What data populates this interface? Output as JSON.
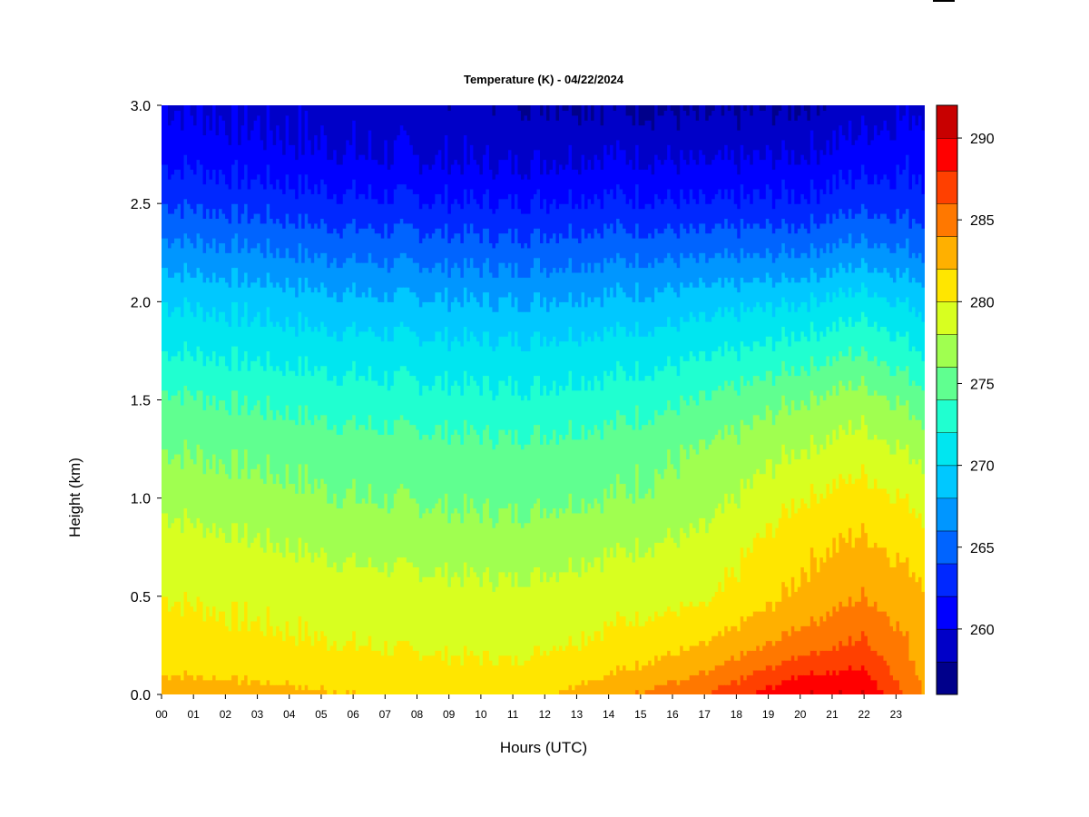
{
  "chart_data": {
    "type": "heatmap",
    "title": "Temperature (K) - 04/22/2024",
    "xlabel": "Hours (UTC)",
    "ylabel": "Height (km)",
    "x_ticks": [
      "00",
      "01",
      "02",
      "03",
      "04",
      "05",
      "06",
      "07",
      "08",
      "09",
      "10",
      "11",
      "12",
      "13",
      "14",
      "15",
      "16",
      "17",
      "18",
      "19",
      "20",
      "21",
      "22",
      "23"
    ],
    "x_range": [
      0,
      23.9
    ],
    "y_ticks": [
      "0.0",
      "0.5",
      "1.0",
      "1.5",
      "2.0",
      "2.5",
      "3.0"
    ],
    "y_range": [
      0,
      3.0
    ],
    "colorbar": {
      "ticks": [
        "260",
        "265",
        "270",
        "275",
        "280",
        "285",
        "290"
      ],
      "range": [
        256,
        292
      ],
      "step": 2,
      "colors": [
        "#00008B",
        "#0000C8",
        "#0000FF",
        "#0028FF",
        "#0064FF",
        "#0096FF",
        "#00C8FF",
        "#00E6F0",
        "#20FFD0",
        "#60FF90",
        "#A0FF50",
        "#D8FF20",
        "#FFE600",
        "#FFB000",
        "#FF7800",
        "#FF4000",
        "#FF0000",
        "#C80000",
        "#8B0000"
      ]
    },
    "profile_hours": [
      0,
      3,
      6,
      9,
      11.5,
      13,
      15,
      17,
      17.5,
      18,
      19,
      20,
      21,
      22,
      22.5,
      23,
      23.9
    ],
    "surface_temp_K": [
      284,
      283,
      282,
      281,
      281,
      283,
      284.5,
      286,
      287,
      288,
      289,
      290,
      290.5,
      290,
      289,
      287,
      284
    ],
    "temperature_grid_K": {
      "heights_km": [
        0.0,
        0.1,
        0.25,
        0.5,
        0.75,
        1.0,
        1.25,
        1.5,
        1.75,
        2.0,
        2.25,
        2.5,
        2.75,
        3.0
      ],
      "hours": [
        0,
        6,
        11,
        14,
        17,
        20,
        22,
        23.9
      ],
      "values": [
        [
          284,
          282,
          281,
          283.5,
          286,
          290,
          290,
          284
        ],
        [
          282,
          281,
          280.5,
          282,
          284,
          288,
          288.5,
          283.5
        ],
        [
          281,
          280,
          279.5,
          280.5,
          282,
          285,
          286.5,
          283
        ],
        [
          280,
          279,
          278.5,
          279.2,
          279.5,
          282.5,
          284,
          282.5
        ],
        [
          279,
          277.5,
          277,
          277.8,
          278.5,
          281.5,
          282.5,
          281
        ],
        [
          277.5,
          276,
          275.5,
          276,
          277,
          280,
          281,
          279.5
        ],
        [
          276,
          275,
          274.5,
          275,
          276,
          278,
          279,
          277.5
        ],
        [
          274.5,
          273,
          272.5,
          273,
          274,
          276,
          277,
          275
        ],
        [
          272,
          271,
          270.5,
          271,
          271.5,
          273,
          274,
          272
        ],
        [
          270,
          268.5,
          268,
          268.5,
          269,
          270,
          271,
          269.5
        ],
        [
          267,
          265.5,
          265,
          265.5,
          265.5,
          266,
          267,
          266
        ],
        [
          264,
          262.5,
          262,
          262.5,
          262,
          262.5,
          263.5,
          263
        ],
        [
          261.5,
          260,
          259.5,
          260,
          259.5,
          260,
          261,
          261.5
        ],
        [
          260,
          259,
          258.5,
          258,
          257.5,
          258,
          259,
          260
        ]
      ]
    },
    "grid": false,
    "legend": "colorbar-right"
  }
}
